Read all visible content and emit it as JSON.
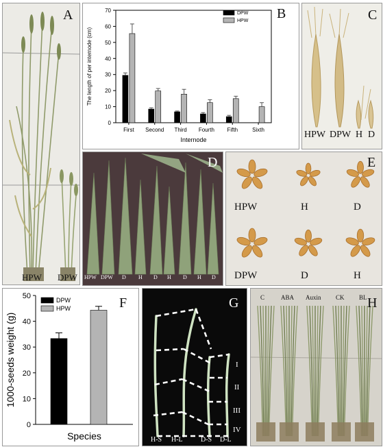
{
  "panels": {
    "A": {
      "letter": "A",
      "labels": [
        "HPW",
        "DPW"
      ]
    },
    "B": {
      "letter": "B"
    },
    "C": {
      "letter": "C",
      "labels": [
        "HPW",
        "DPW",
        "H",
        "D"
      ]
    },
    "D": {
      "letter": "D",
      "labels": [
        "HPW",
        "DPW",
        "D",
        "H",
        "D",
        "H",
        "D",
        "H",
        "D"
      ]
    },
    "E": {
      "letter": "E",
      "labels": [
        "HPW",
        "H",
        "D",
        "DPW",
        "D",
        "H"
      ]
    },
    "F": {
      "letter": "F"
    },
    "G": {
      "letter": "G",
      "row_labels": [
        "I",
        "II",
        "III",
        "IV"
      ],
      "bottom_labels": [
        "H-S",
        "H-L",
        "D-S",
        "D-L"
      ]
    },
    "H": {
      "letter": "H",
      "labels": [
        "C",
        "ABA",
        "Auxin",
        "CK",
        "BL"
      ]
    }
  },
  "chart_data": [
    {
      "panel": "B",
      "type": "bar",
      "categories": [
        "First",
        "Second",
        "Third",
        "Fourth",
        "Fifth",
        "Sixth"
      ],
      "series": [
        {
          "name": "DPW",
          "values": [
            29.5,
            8.5,
            6.8,
            5.5,
            3.8,
            null
          ],
          "errors": [
            1.5,
            0.8,
            0.5,
            0.8,
            0.8,
            null
          ],
          "color": "#000000"
        },
        {
          "name": "HPW",
          "values": [
            55.5,
            19.8,
            17.8,
            12.5,
            15.0,
            10.0
          ],
          "errors": [
            6.0,
            1.5,
            3.0,
            1.8,
            1.5,
            2.5
          ],
          "color": "#b4b4b4"
        }
      ],
      "xlabel": "Internode",
      "ylabel": "The length of per internode (cm)",
      "ylim": [
        0,
        70
      ],
      "yticks": [
        0,
        10,
        20,
        30,
        40,
        50,
        60,
        70
      ],
      "legend": "top-right"
    },
    {
      "panel": "F",
      "type": "bar",
      "categories": [
        "DPW",
        "HPW"
      ],
      "values": [
        33.3,
        44.3
      ],
      "errors": [
        2.2,
        1.5
      ],
      "colors": [
        "#000000",
        "#b4b4b4"
      ],
      "legend_entries": [
        "DPW",
        "HPW"
      ],
      "xlabel": "Species",
      "ylabel": "1000-seeds weight (g)",
      "ylim": [
        0,
        50
      ],
      "yticks": [
        0,
        10,
        20,
        30,
        40,
        50
      ],
      "legend": "top-left"
    }
  ]
}
